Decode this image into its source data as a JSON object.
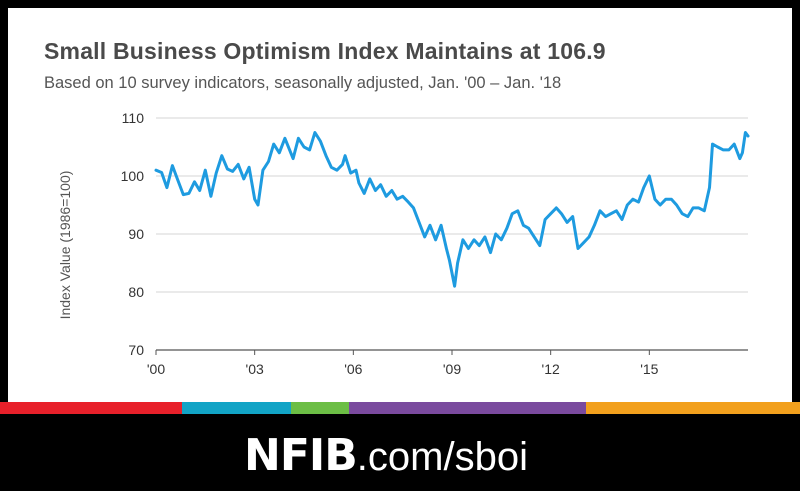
{
  "header": {
    "title": "Small Business Optimism Index Maintains at 106.9",
    "subtitle": "Based on 10 survey indicators, seasonally adjusted, Jan. '00 – Jan. '18"
  },
  "footer": {
    "brand": "NFIB",
    "url": ".com/sboi"
  },
  "colors": {
    "line": "#1e9be0",
    "bar_segments": [
      "#e8202a",
      "#12a4c6",
      "#6cbe45",
      "#7a4a9e",
      "#f2a01d"
    ]
  },
  "chart_data": {
    "type": "line",
    "title": "Small Business Optimism Index Maintains at 106.9",
    "subtitle": "Based on 10 survey indicators, seasonally adjusted, Jan. '00 – Jan. '18",
    "xlabel": "",
    "ylabel": "Index Value (1986=100)",
    "ylim": [
      70,
      110
    ],
    "yticks": [
      70,
      80,
      90,
      100,
      110
    ],
    "xlim": [
      2000.0,
      2018.0
    ],
    "xticks": [
      {
        "value": 2000,
        "label": "'00"
      },
      {
        "value": 2003,
        "label": "'03"
      },
      {
        "value": 2006,
        "label": "'06"
      },
      {
        "value": 2009,
        "label": "'09"
      },
      {
        "value": 2012,
        "label": "'12"
      },
      {
        "value": 2015,
        "label": "'15"
      }
    ],
    "grid": true,
    "series": [
      {
        "name": "",
        "points": [
          [
            2000.0,
            101.0
          ],
          [
            2000.17,
            100.6
          ],
          [
            2000.33,
            98.0
          ],
          [
            2000.5,
            101.8
          ],
          [
            2000.67,
            99.2
          ],
          [
            2000.83,
            96.8
          ],
          [
            2001.0,
            97.0
          ],
          [
            2001.17,
            99.0
          ],
          [
            2001.33,
            97.5
          ],
          [
            2001.5,
            101.0
          ],
          [
            2001.67,
            96.5
          ],
          [
            2001.83,
            100.5
          ],
          [
            2002.0,
            103.5
          ],
          [
            2002.17,
            101.2
          ],
          [
            2002.33,
            100.8
          ],
          [
            2002.5,
            102.0
          ],
          [
            2002.67,
            99.5
          ],
          [
            2002.83,
            101.5
          ],
          [
            2003.0,
            96.0
          ],
          [
            2003.1,
            95.0
          ],
          [
            2003.25,
            101.0
          ],
          [
            2003.42,
            102.5
          ],
          [
            2003.58,
            105.5
          ],
          [
            2003.75,
            104.0
          ],
          [
            2003.92,
            106.5
          ],
          [
            2004.17,
            103.0
          ],
          [
            2004.33,
            106.5
          ],
          [
            2004.5,
            105.0
          ],
          [
            2004.67,
            104.5
          ],
          [
            2004.83,
            107.5
          ],
          [
            2005.0,
            106.0
          ],
          [
            2005.17,
            103.5
          ],
          [
            2005.33,
            101.5
          ],
          [
            2005.5,
            101.0
          ],
          [
            2005.67,
            102.0
          ],
          [
            2005.75,
            103.5
          ],
          [
            2005.92,
            100.5
          ],
          [
            2006.08,
            101.0
          ],
          [
            2006.17,
            98.8
          ],
          [
            2006.33,
            97.0
          ],
          [
            2006.5,
            99.5
          ],
          [
            2006.67,
            97.5
          ],
          [
            2006.83,
            98.5
          ],
          [
            2007.0,
            96.5
          ],
          [
            2007.17,
            97.5
          ],
          [
            2007.33,
            96.0
          ],
          [
            2007.5,
            96.5
          ],
          [
            2007.67,
            95.5
          ],
          [
            2007.83,
            94.5
          ],
          [
            2008.0,
            92.0
          ],
          [
            2008.17,
            89.5
          ],
          [
            2008.33,
            91.5
          ],
          [
            2008.5,
            89.0
          ],
          [
            2008.67,
            91.5
          ],
          [
            2008.83,
            87.5
          ],
          [
            2008.92,
            85.5
          ],
          [
            2009.08,
            81.0
          ],
          [
            2009.17,
            85.0
          ],
          [
            2009.33,
            89.0
          ],
          [
            2009.5,
            87.5
          ],
          [
            2009.67,
            89.0
          ],
          [
            2009.83,
            88.0
          ],
          [
            2010.0,
            89.5
          ],
          [
            2010.17,
            86.8
          ],
          [
            2010.33,
            90.0
          ],
          [
            2010.5,
            89.0
          ],
          [
            2010.67,
            91.0
          ],
          [
            2010.83,
            93.5
          ],
          [
            2011.0,
            94.0
          ],
          [
            2011.17,
            91.5
          ],
          [
            2011.33,
            91.0
          ],
          [
            2011.5,
            89.5
          ],
          [
            2011.67,
            88.0
          ],
          [
            2011.83,
            92.5
          ],
          [
            2012.0,
            93.5
          ],
          [
            2012.17,
            94.5
          ],
          [
            2012.33,
            93.5
          ],
          [
            2012.5,
            92.0
          ],
          [
            2012.67,
            93.0
          ],
          [
            2012.83,
            87.5
          ],
          [
            2013.0,
            88.5
          ],
          [
            2013.17,
            89.5
          ],
          [
            2013.33,
            91.5
          ],
          [
            2013.5,
            94.0
          ],
          [
            2013.67,
            93.0
          ],
          [
            2013.83,
            93.5
          ],
          [
            2014.0,
            94.0
          ],
          [
            2014.17,
            92.5
          ],
          [
            2014.33,
            95.0
          ],
          [
            2014.5,
            96.0
          ],
          [
            2014.67,
            95.5
          ],
          [
            2014.83,
            98.0
          ],
          [
            2015.0,
            100.0
          ],
          [
            2015.17,
            96.0
          ],
          [
            2015.33,
            95.0
          ],
          [
            2015.5,
            96.0
          ],
          [
            2015.67,
            96.0
          ],
          [
            2015.83,
            95.0
          ],
          [
            2016.0,
            93.5
          ],
          [
            2016.17,
            93.0
          ],
          [
            2016.33,
            94.5
          ],
          [
            2016.5,
            94.5
          ],
          [
            2016.67,
            94.0
          ],
          [
            2016.83,
            98.0
          ],
          [
            2016.92,
            105.5
          ],
          [
            2017.08,
            105.0
          ],
          [
            2017.25,
            104.5
          ],
          [
            2017.42,
            104.5
          ],
          [
            2017.58,
            105.5
          ],
          [
            2017.75,
            103.0
          ],
          [
            2017.83,
            104.0
          ],
          [
            2017.92,
            107.5
          ],
          [
            2018.0,
            106.9
          ]
        ]
      }
    ]
  }
}
